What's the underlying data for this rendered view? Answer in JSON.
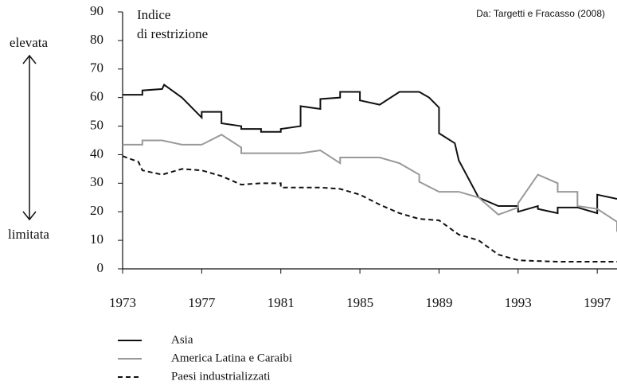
{
  "chart_data": {
    "type": "line",
    "ylabel": [
      "Indice",
      "di restrizione"
    ],
    "source": "Da: Targetti e Fracasso (2008)",
    "annotations": {
      "high": "elevata",
      "low": "limitata"
    },
    "xlim": [
      1973,
      1998
    ],
    "xticks": [
      1973,
      1977,
      1981,
      1985,
      1989,
      1993,
      1997
    ],
    "ylim": [
      0,
      90
    ],
    "yticks": [
      0,
      10,
      20,
      30,
      40,
      50,
      60,
      70,
      80,
      90
    ],
    "series": [
      {
        "name": "Asia",
        "color": "#111111",
        "dash": "solid",
        "x": [
          1973,
          1974,
          1974,
          1975,
          1975.1,
          1976,
          1977,
          1977,
          1978,
          1978,
          1979,
          1979,
          1980,
          1980,
          1981,
          1981,
          1982,
          1982,
          1983,
          1983,
          1984,
          1984,
          1985,
          1985,
          1986,
          1987,
          1988,
          1988.5,
          1989,
          1989,
          1989.8,
          1990,
          1991,
          1992,
          1993,
          1993,
          1994,
          1994,
          1995,
          1995,
          1996,
          1997,
          1997,
          1998
        ],
        "values": [
          61,
          61,
          62.5,
          63,
          64.5,
          60,
          53,
          55,
          55,
          51,
          50,
          49,
          49,
          48,
          48,
          49,
          50,
          57,
          56,
          59.5,
          60,
          62,
          62,
          59,
          57.5,
          62,
          62,
          60,
          56.5,
          47.5,
          44,
          38,
          25,
          22,
          22,
          20,
          22,
          21,
          19.5,
          21.5,
          21.5,
          19.5,
          26,
          24.5
        ]
      },
      {
        "name": "America Latina e Caraibi",
        "color": "#999999",
        "dash": "solid",
        "x": [
          1973,
          1974,
          1974,
          1975,
          1976,
          1977,
          1978,
          1979,
          1979,
          1981,
          1982,
          1983,
          1984,
          1984,
          1986,
          1987,
          1988,
          1988,
          1989,
          1990,
          1991,
          1992,
          1993,
          1993,
          1994,
          1995,
          1995,
          1996,
          1996,
          1997,
          1998,
          1998
        ],
        "values": [
          43.5,
          43.5,
          45,
          45,
          43.5,
          43.5,
          47,
          42.5,
          40.5,
          40.5,
          40.5,
          41.5,
          37,
          39,
          39,
          37,
          33,
          30.5,
          27,
          27,
          25,
          19,
          21.5,
          23,
          33,
          30,
          27,
          27,
          22,
          21,
          16.5,
          13
        ]
      },
      {
        "name": "Paesi industrializzati",
        "color": "#111111",
        "dash": "dashed",
        "x": [
          1973,
          1973.8,
          1974,
          1975,
          1976,
          1977,
          1978,
          1979,
          1980,
          1981,
          1981,
          1983,
          1984,
          1985,
          1986,
          1987,
          1988,
          1989,
          1990,
          1991,
          1992,
          1993,
          1995,
          1998
        ],
        "values": [
          39.5,
          37.5,
          34.5,
          33,
          35,
          34.5,
          32.5,
          29.5,
          30,
          30,
          28.5,
          28.5,
          28,
          26,
          22.5,
          19.5,
          17.5,
          17,
          12,
          10,
          5,
          3,
          2.5,
          2.5
        ]
      }
    ]
  }
}
